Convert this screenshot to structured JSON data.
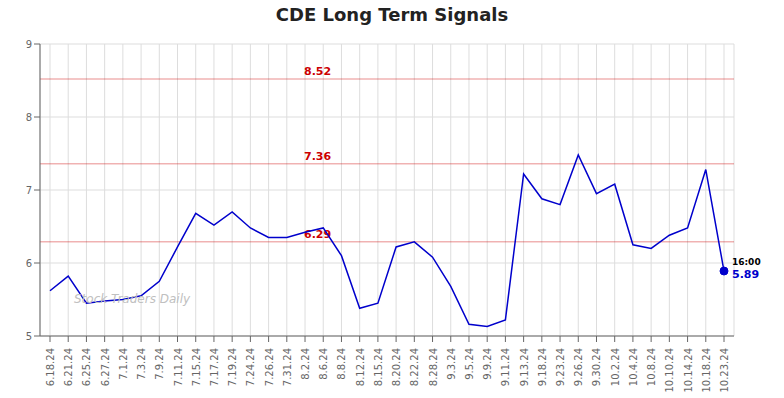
{
  "chart_data": {
    "type": "line",
    "title": "CDE Long Term Signals",
    "categories": [
      "6.18.24",
      "6.21.24",
      "6.25.24",
      "6.27.24",
      "7.1.24",
      "7.3.24",
      "7.9.24",
      "7.11.24",
      "7.15.24",
      "7.17.24",
      "7.19.24",
      "7.24.24",
      "7.26.24",
      "7.31.24",
      "8.2.24",
      "8.6.24",
      "8.8.24",
      "8.12.24",
      "8.15.24",
      "8.20.24",
      "8.22.24",
      "8.28.24",
      "9.3.24",
      "9.5.24",
      "9.9.24",
      "9.11.24",
      "9.13.24",
      "9.18.24",
      "9.23.24",
      "9.26.24",
      "9.30.24",
      "10.2.24",
      "10.4.24",
      "10.8.24",
      "10.10.24",
      "10.14.24",
      "10.18.24",
      "10.23.24"
    ],
    "values": [
      5.62,
      5.82,
      5.45,
      5.48,
      5.5,
      5.55,
      5.75,
      6.22,
      6.68,
      6.52,
      6.7,
      6.48,
      6.35,
      6.35,
      6.42,
      6.48,
      6.1,
      5.38,
      5.45,
      6.22,
      6.29,
      6.08,
      5.68,
      5.16,
      5.13,
      5.22,
      7.22,
      6.88,
      6.8,
      7.48,
      6.95,
      7.08,
      6.25,
      6.2,
      6.38,
      6.48,
      7.28,
      5.89
    ],
    "color": "#0000cc",
    "ylim": [
      5.0,
      9.0
    ],
    "yticks": [
      5,
      6,
      7,
      8,
      9
    ],
    "grid": true,
    "hlines": [
      {
        "y": 8.52,
        "label": "8.52",
        "color": "#cc0000"
      },
      {
        "y": 7.36,
        "label": "7.36",
        "color": "#cc0000"
      },
      {
        "y": 6.29,
        "label": "6.29",
        "color": "#cc0000"
      }
    ],
    "watermark": "Stock Traders Daily",
    "last_point": {
      "label": "16:00",
      "value_label": "5.89"
    }
  }
}
